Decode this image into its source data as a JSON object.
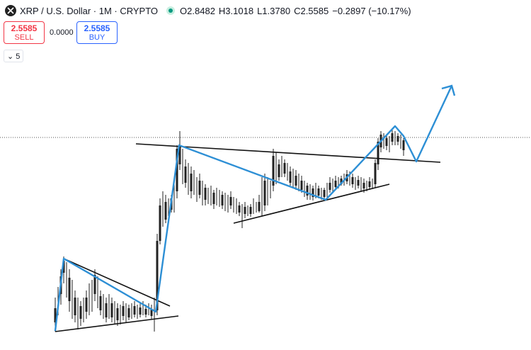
{
  "header": {
    "title": "XRP / U.S. Dollar · 1M · CRYPTO",
    "open": "O2.8482",
    "high": "H3.1018",
    "low": "L1.3780",
    "close": "C2.5585",
    "change": "−0.2897 (−10.17%)"
  },
  "trade": {
    "sell_price": "2.5585",
    "sell_label": "SELL",
    "spread": "0.0000",
    "buy_price": "2.5585",
    "buy_label": "BUY"
  },
  "indicators_toggle": "5"
}
